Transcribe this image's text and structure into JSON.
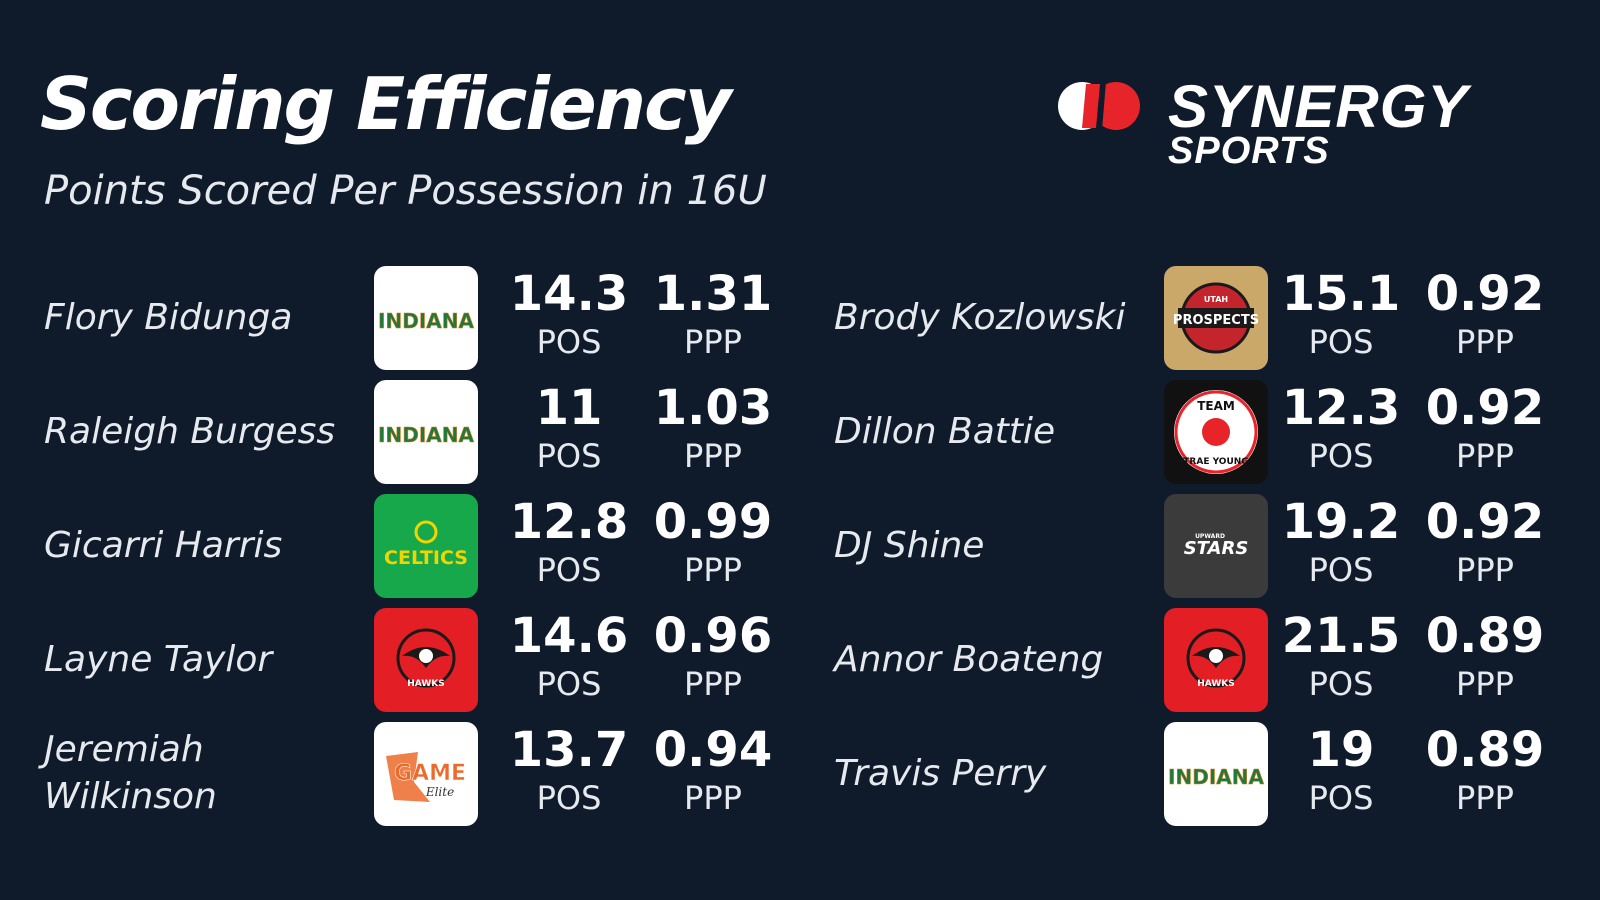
{
  "header": {
    "title": "Scoring Efficiency",
    "subtitle": "Points Scored Per Possession in 16U"
  },
  "brand": {
    "line1": "SYNERGY",
    "line2": "SPORTS",
    "accent": "#e8242b"
  },
  "columns": {
    "left": [
      {
        "name": "Flory Bidunga",
        "team": "INDIANA",
        "pos": "14.3",
        "ppp": "1.31",
        "pos_label": "POS",
        "ppp_label": "PPP"
      },
      {
        "name": "Raleigh Burgess",
        "team": "INDIANA",
        "pos": "11",
        "ppp": "1.03",
        "pos_label": "POS",
        "ppp_label": "PPP"
      },
      {
        "name": "Gicarri Harris",
        "team": "CELTICS",
        "pos": "12.8",
        "ppp": "0.99",
        "pos_label": "POS",
        "ppp_label": "PPP"
      },
      {
        "name": "Layne Taylor",
        "team": "HAWKS",
        "pos": "14.6",
        "ppp": "0.96",
        "pos_label": "POS",
        "ppp_label": "PPP"
      },
      {
        "name": "Jeremiah Wilkinson",
        "team": "GAME",
        "team_sub": "Elite",
        "pos": "13.7",
        "ppp": "0.94",
        "pos_label": "POS",
        "ppp_label": "PPP"
      }
    ],
    "right": [
      {
        "name": "Brody Kozlowski",
        "team": "PROSPECTS",
        "team_top": "UTAH",
        "pos": "15.1",
        "ppp": "0.92",
        "pos_label": "POS",
        "ppp_label": "PPP"
      },
      {
        "name": "Dillon Battie",
        "team": "TEAM",
        "team_sub": "TRAE YOUNG",
        "pos": "12.3",
        "ppp": "0.92",
        "pos_label": "POS",
        "ppp_label": "PPP"
      },
      {
        "name": "DJ Shine",
        "team": "STARS",
        "team_top": "UPWARD",
        "pos": "19.2",
        "ppp": "0.92",
        "pos_label": "POS",
        "ppp_label": "PPP"
      },
      {
        "name": "Annor Boateng",
        "team": "HAWKS",
        "pos": "21.5",
        "ppp": "0.89",
        "pos_label": "POS",
        "ppp_label": "PPP"
      },
      {
        "name": "Travis Perry",
        "team": "INDIANA",
        "pos": "19",
        "ppp": "0.89",
        "pos_label": "POS",
        "ppp_label": "PPP"
      }
    ]
  },
  "icons": {
    "indiana": "indiana-logo-icon",
    "celtics": "celtics-logo-icon",
    "hawks": "hawks-logo-icon",
    "game_elite": "game-elite-logo-icon",
    "utah_prospects": "utah-prospects-logo-icon",
    "team_trae_young": "team-trae-young-logo-icon",
    "upward_stars": "upward-stars-logo-icon"
  },
  "colors": {
    "background": "#0f1b2b",
    "indiana_green": "#1e7a3a",
    "celtics_bg": "#16a84a",
    "hawks_bg": "#e31e24",
    "prospects_bg": "#c9a86a",
    "trae_bg": "#111111",
    "stars_bg": "#3b3b3b",
    "game_orange": "#ec6a2a"
  }
}
